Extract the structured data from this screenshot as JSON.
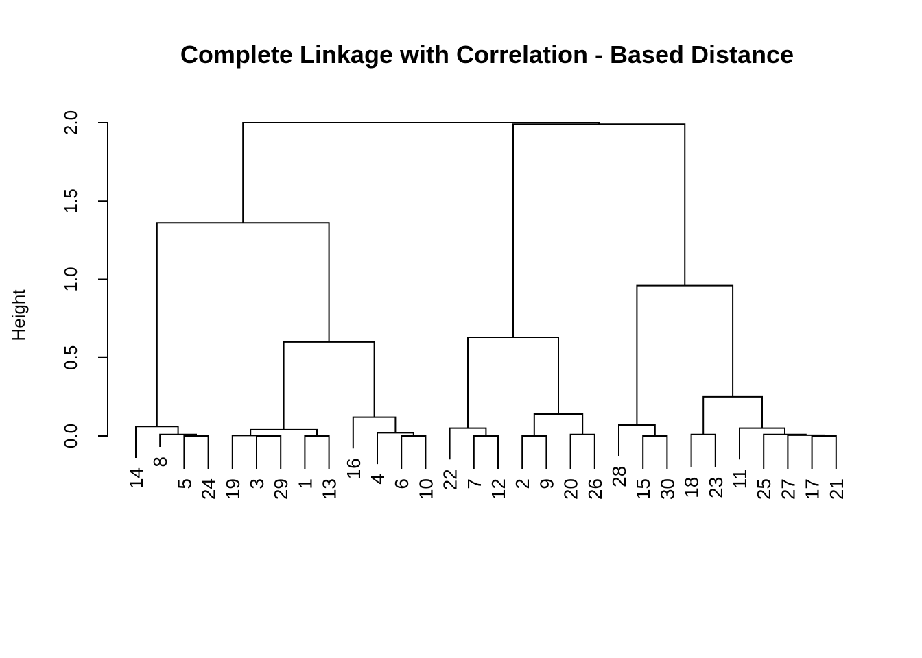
{
  "chart_data": {
    "type": "dendrogram",
    "title": "Complete Linkage with Correlation - Based Distance",
    "xlabel": "",
    "ylabel": "Height",
    "ylim": [
      0,
      2.0
    ],
    "yticks": [
      "0.0",
      "0.5",
      "1.0",
      "1.5",
      "2.0"
    ],
    "ytick_values": [
      0,
      0.5,
      1.0,
      1.5,
      2.0
    ],
    "leaves": [
      "14",
      "8",
      "5",
      "24",
      "19",
      "3",
      "29",
      "1",
      "13",
      "16",
      "4",
      "6",
      "10",
      "22",
      "7",
      "12",
      "2",
      "9",
      "20",
      "26",
      "28",
      "15",
      "30",
      "18",
      "23",
      "11",
      "25",
      "27",
      "17",
      "21"
    ],
    "merges": [
      {
        "left": "24",
        "right": "5",
        "height": 0.0
      },
      {
        "left": "5",
        "right": "8",
        "height": 0.01
      },
      {
        "left": "8",
        "right": "14",
        "height": 0.06
      },
      {
        "left": "29",
        "right": "3",
        "height": 0.0
      },
      {
        "left": "3",
        "right": "19",
        "height": 0.003
      },
      {
        "left": "13",
        "right": "1",
        "height": 0.0
      },
      {
        "left": "19",
        "right": "1",
        "height": 0.04
      },
      {
        "left": "10",
        "right": "6",
        "height": 0.0
      },
      {
        "left": "6",
        "right": "4",
        "height": 0.02
      },
      {
        "left": "4",
        "right": "16",
        "height": 0.12
      },
      {
        "left": "1",
        "right": "16",
        "height": 0.6
      },
      {
        "left": "14",
        "right": "16",
        "height": 1.36
      },
      {
        "left": "12",
        "right": "7",
        "height": 0.0
      },
      {
        "left": "7",
        "right": "22",
        "height": 0.05
      },
      {
        "left": "9",
        "right": "2",
        "height": 0.0
      },
      {
        "left": "26",
        "right": "20",
        "height": 0.01
      },
      {
        "left": "2",
        "right": "20",
        "height": 0.14
      },
      {
        "left": "22",
        "right": "20",
        "height": 0.63
      },
      {
        "left": "30",
        "right": "15",
        "height": 0.0
      },
      {
        "left": "15",
        "right": "28",
        "height": 0.07
      },
      {
        "left": "23",
        "right": "18",
        "height": 0.01
      },
      {
        "left": "21",
        "right": "17",
        "height": 0.0
      },
      {
        "left": "17",
        "right": "27",
        "height": 0.005
      },
      {
        "left": "27",
        "right": "25",
        "height": 0.01
      },
      {
        "left": "25",
        "right": "11",
        "height": 0.05
      },
      {
        "left": "18",
        "right": "11",
        "height": 0.25
      },
      {
        "left": "28",
        "right": "11",
        "height": 0.96
      },
      {
        "left": "22",
        "right": "28",
        "height": 1.99
      },
      {
        "left": "14",
        "right": "22",
        "height": 2.0
      }
    ],
    "leaf_heights": {
      "14": -0.14,
      "8": -0.07,
      "5": -0.21,
      "24": -0.21,
      "19": -0.21,
      "3": -0.21,
      "29": -0.21,
      "1": -0.21,
      "13": -0.21,
      "16": -0.08,
      "4": -0.18,
      "6": -0.21,
      "10": -0.21,
      "22": -0.15,
      "7": -0.21,
      "12": -0.21,
      "2": -0.21,
      "9": -0.21,
      "20": -0.21,
      "26": -0.21,
      "28": -0.13,
      "15": -0.21,
      "30": -0.21,
      "18": -0.2,
      "23": -0.2,
      "11": -0.15,
      "25": -0.21,
      "27": -0.21,
      "17": -0.21,
      "21": -0.21
    },
    "grid": false,
    "legend": "none"
  }
}
